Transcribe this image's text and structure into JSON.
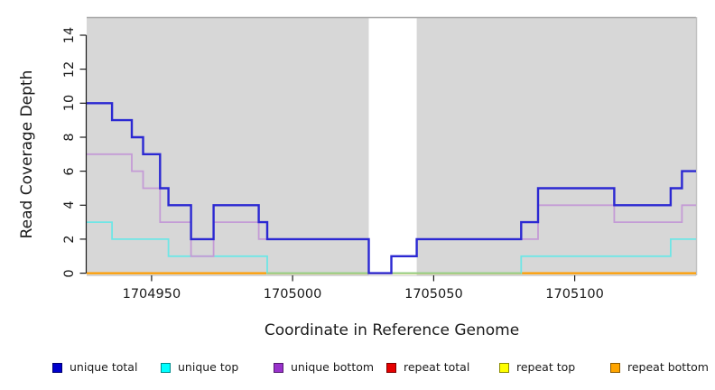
{
  "chart_data": {
    "type": "line",
    "subtype": "step-post",
    "title": "",
    "xlabel": "Coordinate in Reference Genome",
    "ylabel": "Read Coverage Depth",
    "x_domain": [
      1704927,
      1705143
    ],
    "y_domain": [
      0,
      15
    ],
    "grid": "off",
    "plot_background": "#d7d7d7",
    "x_ticks": [
      {
        "value": 1704950,
        "label": "1704950"
      },
      {
        "value": 1705000,
        "label": "1705000"
      },
      {
        "value": 1705050,
        "label": "1705050"
      },
      {
        "value": 1705100,
        "label": "1705100"
      }
    ],
    "y_ticks": [
      {
        "value": 0,
        "label": "0"
      },
      {
        "value": 2,
        "label": "2"
      },
      {
        "value": 4,
        "label": "4"
      },
      {
        "value": 6,
        "label": "6"
      },
      {
        "value": 8,
        "label": "8"
      },
      {
        "value": 10,
        "label": "10"
      },
      {
        "value": 12,
        "label": "12"
      },
      {
        "value": 14,
        "label": "14"
      }
    ],
    "gap_region": {
      "from": 1705027,
      "to": 1705044,
      "fill": "#ffffff"
    },
    "zero_overlap_segment": {
      "from": 1704991,
      "to": 1705081,
      "value": 0,
      "color": "#8fd48f",
      "width": 1.8
    },
    "series": [
      {
        "name": "unique total",
        "z": 6,
        "line_color": "#2b28d2",
        "width": 2.4,
        "end": 1705143,
        "steps": [
          [
            1704927,
            10
          ],
          [
            1704936,
            9
          ],
          [
            1704943,
            8
          ],
          [
            1704947,
            7
          ],
          [
            1704953,
            5
          ],
          [
            1704956,
            4
          ],
          [
            1704964,
            2
          ],
          [
            1704972,
            4
          ],
          [
            1704988,
            3
          ],
          [
            1704991,
            2
          ],
          [
            1705027,
            0
          ],
          [
            1705035,
            1
          ],
          [
            1705044,
            2
          ],
          [
            1705081,
            3
          ],
          [
            1705087,
            5
          ],
          [
            1705114,
            4
          ],
          [
            1705134,
            5
          ],
          [
            1705138,
            6
          ]
        ]
      },
      {
        "name": "unique top",
        "z": 4,
        "line_color": "#6fe6e6",
        "width": 1.8,
        "end": 1705143,
        "steps": [
          [
            1704927,
            3
          ],
          [
            1704936,
            2
          ],
          [
            1704956,
            1
          ],
          [
            1704991,
            0
          ],
          [
            1705081,
            1
          ],
          [
            1705134,
            2
          ]
        ]
      },
      {
        "name": "unique bottom",
        "z": 5,
        "line_color": "#c49bd6",
        "width": 1.8,
        "end": 1705143,
        "steps": [
          [
            1704927,
            7
          ],
          [
            1704943,
            6
          ],
          [
            1704947,
            5
          ],
          [
            1704953,
            3
          ],
          [
            1704964,
            1
          ],
          [
            1704972,
            3
          ],
          [
            1704988,
            2
          ],
          [
            1705027,
            0
          ],
          [
            1705035,
            1
          ],
          [
            1705044,
            2
          ],
          [
            1705087,
            4
          ],
          [
            1705114,
            3
          ],
          [
            1705138,
            4
          ]
        ]
      },
      {
        "name": "repeat total",
        "z": 1,
        "line_color": "#dd0000",
        "width": 1.5,
        "end": 1705143,
        "steps": [
          [
            1704927,
            0
          ]
        ]
      },
      {
        "name": "repeat top",
        "z": 2,
        "line_color": "#ffff00",
        "width": 1.5,
        "end": 1705143,
        "steps": [
          [
            1704927,
            0
          ]
        ]
      },
      {
        "name": "repeat bottom",
        "z": 3,
        "line_color": "#ff9e00",
        "width": 2.2,
        "end": 1705143,
        "steps": [
          [
            1704927,
            0
          ]
        ]
      }
    ]
  },
  "legend": {
    "items": [
      {
        "label": "unique total",
        "color": "#0000cd"
      },
      {
        "label": "unique top",
        "color": "#00ffff"
      },
      {
        "label": "unique bottom",
        "color": "#9932cc"
      },
      {
        "label": "repeat total",
        "color": "#e60000"
      },
      {
        "label": "repeat top",
        "color": "#ffff00"
      },
      {
        "label": "repeat bottom",
        "color": "#ffa500"
      }
    ]
  }
}
